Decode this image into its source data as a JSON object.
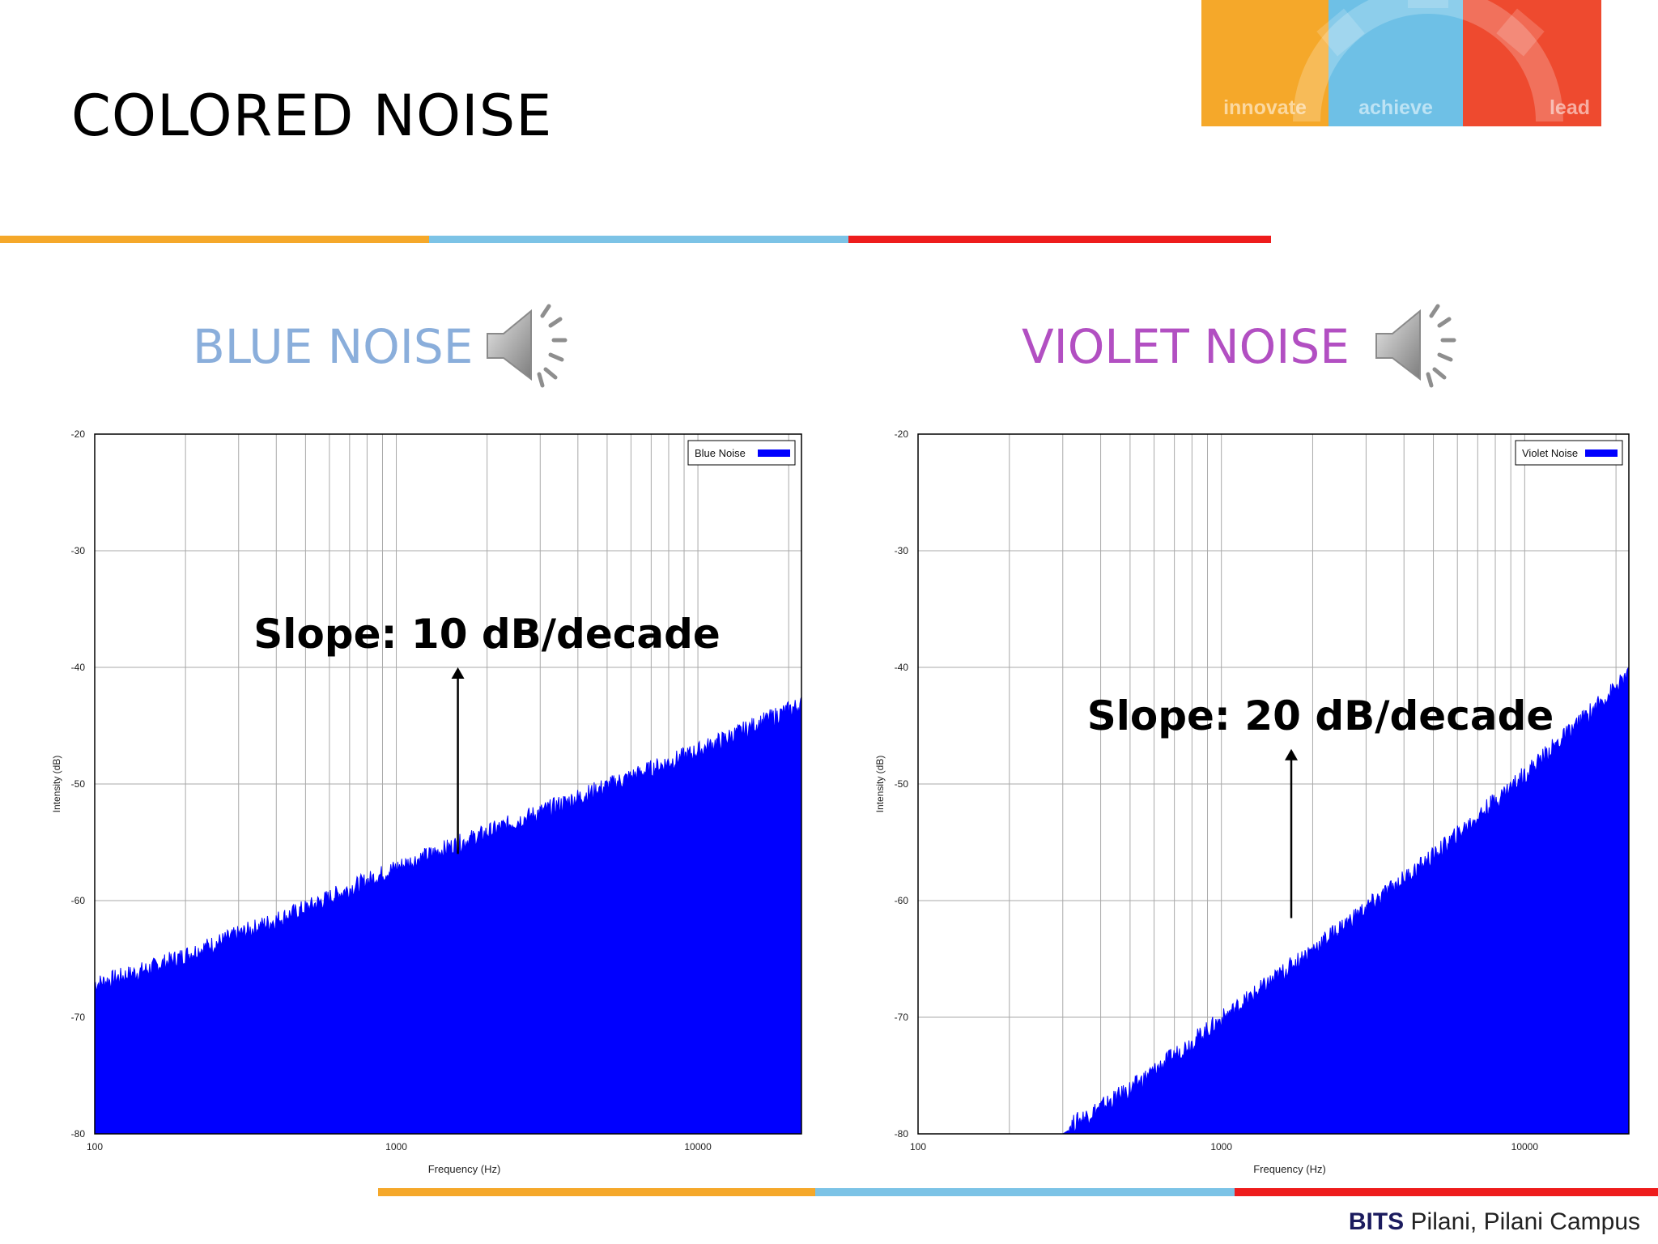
{
  "slide": {
    "title": "COLORED NOISE"
  },
  "logo": {
    "words": [
      "innovate",
      "achieve",
      "lead"
    ],
    "colors": [
      "#F5A82A",
      "#6EC0E6",
      "#EE4A2F"
    ]
  },
  "stripe_colors": [
    "#F5A82A",
    "#7CC3E6",
    "#EE1C1C"
  ],
  "footer": {
    "org": "BITS",
    "campus": " Pilani, Pilani Campus"
  },
  "sections": {
    "blue": {
      "label": "BLUE NOISE",
      "color": "#8AAEDB",
      "icon": "speaker-icon"
    },
    "violet": {
      "label": "VIOLET NOISE",
      "color": "#B24FC2",
      "icon": "speaker-icon"
    }
  },
  "chart_data": [
    {
      "type": "area",
      "series": [
        {
          "name": "Blue Noise",
          "color": "#0000FF",
          "x": [
            100,
            150,
            200,
            500,
            1000,
            2000,
            5000,
            10000,
            22050
          ],
          "y": [
            -67.5,
            -66.2,
            -65,
            -61,
            -57.5,
            -54.5,
            -50.5,
            -47.5,
            -43.5
          ]
        }
      ],
      "xlabel": "Frequency (Hz)",
      "ylabel": "Intensity (dB)",
      "xscale": "log",
      "xlim": [
        100,
        22050
      ],
      "ylim": [
        -80,
        -20
      ],
      "xticks": [
        "100",
        "1000",
        "10000"
      ],
      "yticks": [
        "-20",
        "-30",
        "-40",
        "-50",
        "-60",
        "-70",
        "-80"
      ],
      "grid": true,
      "legend": "top-right",
      "annotation": "Slope: 10 dB/decade",
      "annotation_arrow": {
        "x": 1600,
        "y_from": -56,
        "y_to": -40
      }
    },
    {
      "type": "area",
      "series": [
        {
          "name": "Violet Noise",
          "color": "#0000FF",
          "x": [
            100,
            300,
            500,
            1000,
            2000,
            5000,
            10000,
            22050
          ],
          "y": [
            -80,
            -80,
            -76.5,
            -70.5,
            -64.5,
            -56.5,
            -49.5,
            -41
          ]
        }
      ],
      "xlabel": "Frequency (Hz)",
      "ylabel": "Intensity (dB)",
      "xscale": "log",
      "xlim": [
        100,
        22050
      ],
      "ylim": [
        -80,
        -20
      ],
      "xticks": [
        "100",
        "1000",
        "10000"
      ],
      "yticks": [
        "-20",
        "-30",
        "-40",
        "-50",
        "-60",
        "-70",
        "-80"
      ],
      "grid": true,
      "legend": "top-right",
      "annotation": "Slope: 20 dB/decade",
      "annotation_arrow": {
        "x": 1700,
        "y_from": -61.5,
        "y_to": -47
      }
    }
  ]
}
